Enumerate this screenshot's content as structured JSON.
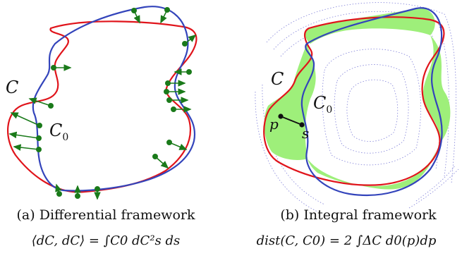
{
  "colors": {
    "curve_c": "#e0141b",
    "curve_c0": "#3344bb",
    "arrows": "#1a7a1a",
    "fill_region": "#9eef7a",
    "level_lines": "#8080d8",
    "background": "#ffffff"
  },
  "panel_a": {
    "label_c": "C",
    "label_c0_base": "C",
    "label_c0_sub": "0",
    "caption": "(a) Differential framework",
    "equation": "⟨dC, dC⟩ = ∫C0 dC²s ds"
  },
  "panel_b": {
    "label_c": "C",
    "label_c0_base": "C",
    "label_c0_sub": "0",
    "label_p": "p",
    "label_s": "s",
    "caption": "(b) Integral framework",
    "equation": "dist(C, C0) = 2 ∫ΔC d0(p)dp"
  }
}
